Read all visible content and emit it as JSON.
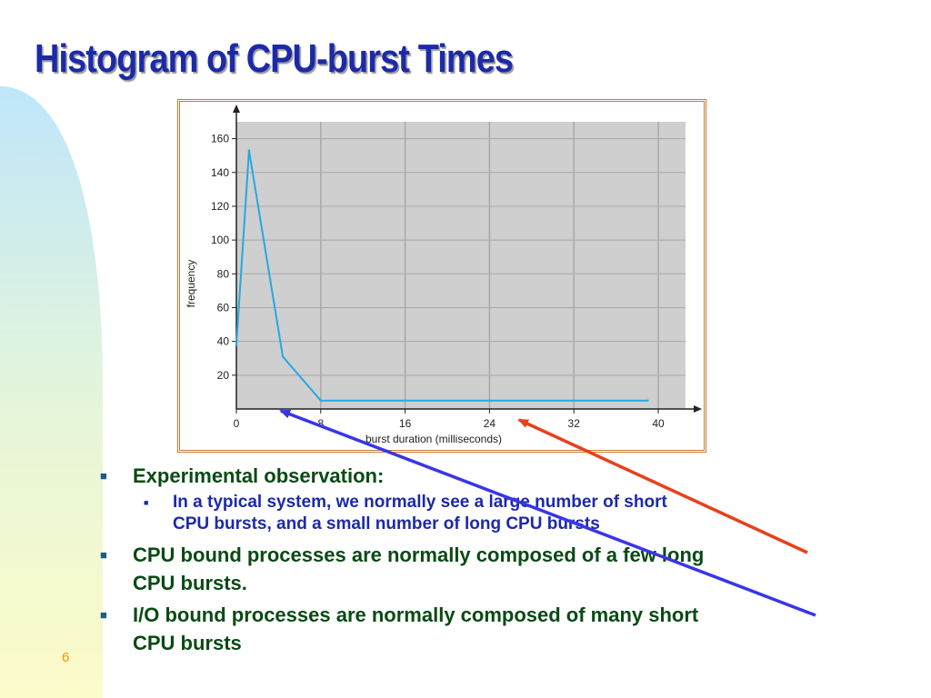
{
  "slide": {
    "title": "Histogram of CPU-burst Times",
    "page_number": "6"
  },
  "bullets": [
    {
      "level": 1,
      "text": "Experimental observation:",
      "children": [
        {
          "level": 2,
          "lines": [
            "In a typical system, we normally see a large number of short",
            "CPU bursts, and a small number of long CPU bursts"
          ]
        }
      ]
    },
    {
      "level": 1,
      "lines": [
        "CPU bound processes are normally composed of a few long",
        "CPU bursts."
      ]
    },
    {
      "level": 1,
      "lines": [
        "I/O bound processes are normally composed of many short",
        "CPU bursts"
      ]
    }
  ],
  "chart_data": {
    "type": "line",
    "title": "",
    "xlabel": "burst duration (milliseconds)",
    "ylabel": "frequency",
    "xlim": [
      0,
      40
    ],
    "ylim": [
      0,
      160
    ],
    "xticks": [
      0,
      8,
      16,
      24,
      32,
      40
    ],
    "yticks": [
      20,
      40,
      60,
      80,
      100,
      120,
      140,
      160
    ],
    "grid": true,
    "series": [
      {
        "x": [
          0,
          1.2,
          4.4,
          8,
          16,
          24,
          32,
          39
        ],
        "y": [
          38,
          153,
          31,
          5,
          5,
          5,
          5,
          5
        ]
      }
    ]
  },
  "colors": {
    "title": "#1c2aa8",
    "plot_background": "#cfcfcf",
    "grid": "#a8a8a8",
    "line": "#25a8e0",
    "frame": "#c87a33",
    "bullet_level1": "#0a4a14",
    "bullet_level2": "#1c2aa8",
    "arrow_red": "#e8401c",
    "arrow_blue": "#3a35e6",
    "page_number": "#e0a000"
  },
  "annotations": [
    {
      "name": "red-arrow",
      "color": "#e8401c",
      "from_bullet": 1,
      "points_to_x": 25
    },
    {
      "name": "blue-arrow",
      "color": "#3a35e6",
      "from_bullet": 2,
      "points_to_x": 3.5
    }
  ]
}
